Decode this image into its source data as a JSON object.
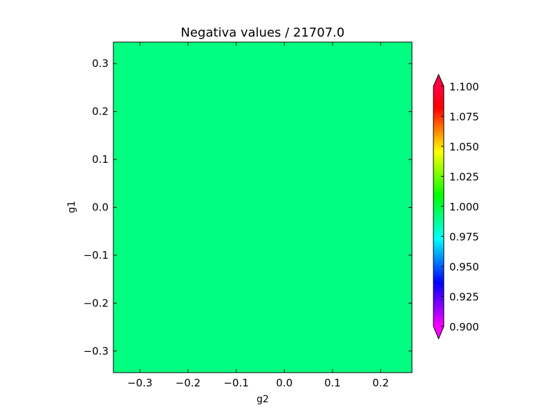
{
  "chart_data": {
    "type": "heatmap",
    "title": "Negativa values / 21707.0",
    "xlabel": "g2",
    "ylabel": "g1",
    "xlim": [
      -0.355,
      0.265
    ],
    "ylim": [
      -0.345,
      0.345
    ],
    "xticks": [
      -0.3,
      -0.2,
      -0.1,
      0.0,
      0.1,
      0.2
    ],
    "xtick_labels": [
      "−0.3",
      "−0.2",
      "−0.1",
      "0.0",
      "0.1",
      "0.2"
    ],
    "yticks": [
      0.3,
      0.2,
      0.1,
      0.0,
      -0.1,
      -0.2,
      -0.3
    ],
    "ytick_labels": [
      "0.3",
      "0.2",
      "0.1",
      "0.0",
      "−0.1",
      "−0.2",
      "−0.3"
    ],
    "field_value": 1.0,
    "field_color": "#00ff80",
    "colorbar": {
      "range": [
        0.9,
        1.1
      ],
      "extend": "both",
      "ticks": [
        0.9,
        0.925,
        0.95,
        0.975,
        1.0,
        1.025,
        1.05,
        1.075,
        1.1
      ],
      "tick_labels": [
        "0.900",
        "0.925",
        "0.950",
        "0.975",
        "1.000",
        "1.025",
        "1.050",
        "1.075",
        "1.100"
      ],
      "colormap_stops": [
        "#ff00ff",
        "#8000ff",
        "#0000ff",
        "#0080ff",
        "#00ffff",
        "#00ff80",
        "#00ff00",
        "#80ff00",
        "#ffff00",
        "#ff8000",
        "#ff0000",
        "#ff0040"
      ],
      "over_color": "#ff0040",
      "under_color": "#ff00ff"
    }
  }
}
